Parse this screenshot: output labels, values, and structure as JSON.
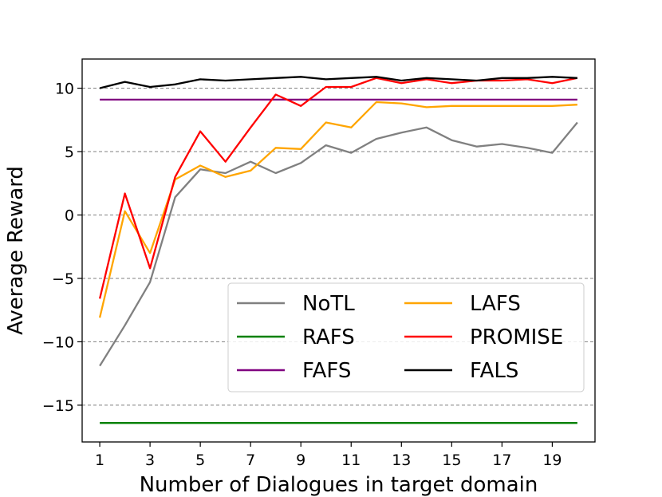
{
  "chart_data": {
    "type": "line",
    "xlabel": "Number of Dialogues in target domain",
    "ylabel": "Average Reward",
    "xlim": [
      0.3,
      20.7
    ],
    "ylim": [
      -17.9,
      12.3
    ],
    "xticks": [
      1,
      3,
      5,
      7,
      9,
      11,
      13,
      15,
      17,
      19
    ],
    "yticks": [
      10,
      5,
      0,
      -5,
      -10,
      -15
    ],
    "ytick_labels": [
      "10",
      "5",
      "0",
      "−5",
      "−10",
      "−15"
    ],
    "grid": "horizontal dashed at y ticks",
    "legend_position": "lower right",
    "x": [
      1,
      2,
      3,
      4,
      5,
      6,
      7,
      8,
      9,
      10,
      11,
      12,
      13,
      14,
      15,
      16,
      17,
      18,
      19,
      20
    ],
    "series": [
      {
        "name": "NoTL",
        "color": "#808080",
        "values": [
          -11.9,
          -8.7,
          -5.3,
          1.4,
          3.6,
          3.3,
          4.2,
          3.3,
          4.1,
          5.5,
          4.9,
          6.0,
          6.5,
          6.9,
          5.9,
          5.4,
          5.6,
          5.3,
          4.9,
          7.3
        ]
      },
      {
        "name": "RAFS",
        "color": "#008000",
        "values": [
          -16.4,
          -16.4,
          -16.4,
          -16.4,
          -16.4,
          -16.4,
          -16.4,
          -16.4,
          -16.4,
          -16.4,
          -16.4,
          -16.4,
          -16.4,
          -16.4,
          -16.4,
          -16.4,
          -16.4,
          -16.4,
          -16.4,
          -16.4
        ]
      },
      {
        "name": "FAFS",
        "color": "#800080",
        "values": [
          9.1,
          9.1,
          9.1,
          9.1,
          9.1,
          9.1,
          9.1,
          9.1,
          9.1,
          9.1,
          9.1,
          9.1,
          9.1,
          9.1,
          9.1,
          9.1,
          9.1,
          9.1,
          9.1,
          9.1
        ]
      },
      {
        "name": "LAFS",
        "color": "#ffa500",
        "values": [
          -8.1,
          0.3,
          -3.0,
          2.8,
          3.9,
          3.0,
          3.5,
          5.3,
          5.2,
          7.3,
          6.9,
          8.9,
          8.8,
          8.5,
          8.6,
          8.6,
          8.6,
          8.6,
          8.6,
          8.7
        ]
      },
      {
        "name": "PROMISE",
        "color": "#ff0000",
        "values": [
          -6.6,
          1.7,
          -4.2,
          3.0,
          6.6,
          4.2,
          6.9,
          9.5,
          8.6,
          10.1,
          10.1,
          10.8,
          10.4,
          10.7,
          10.4,
          10.6,
          10.6,
          10.7,
          10.4,
          10.8
        ]
      },
      {
        "name": "FALS",
        "color": "#000000",
        "values": [
          10.0,
          10.5,
          10.1,
          10.3,
          10.7,
          10.6,
          10.7,
          10.8,
          10.9,
          10.7,
          10.8,
          10.9,
          10.6,
          10.8,
          10.7,
          10.6,
          10.8,
          10.8,
          10.9,
          10.8
        ]
      }
    ],
    "legend_layout": [
      [
        "NoTL",
        "LAFS"
      ],
      [
        "RAFS",
        "PROMISE"
      ],
      [
        "FAFS",
        "FALS"
      ]
    ]
  }
}
